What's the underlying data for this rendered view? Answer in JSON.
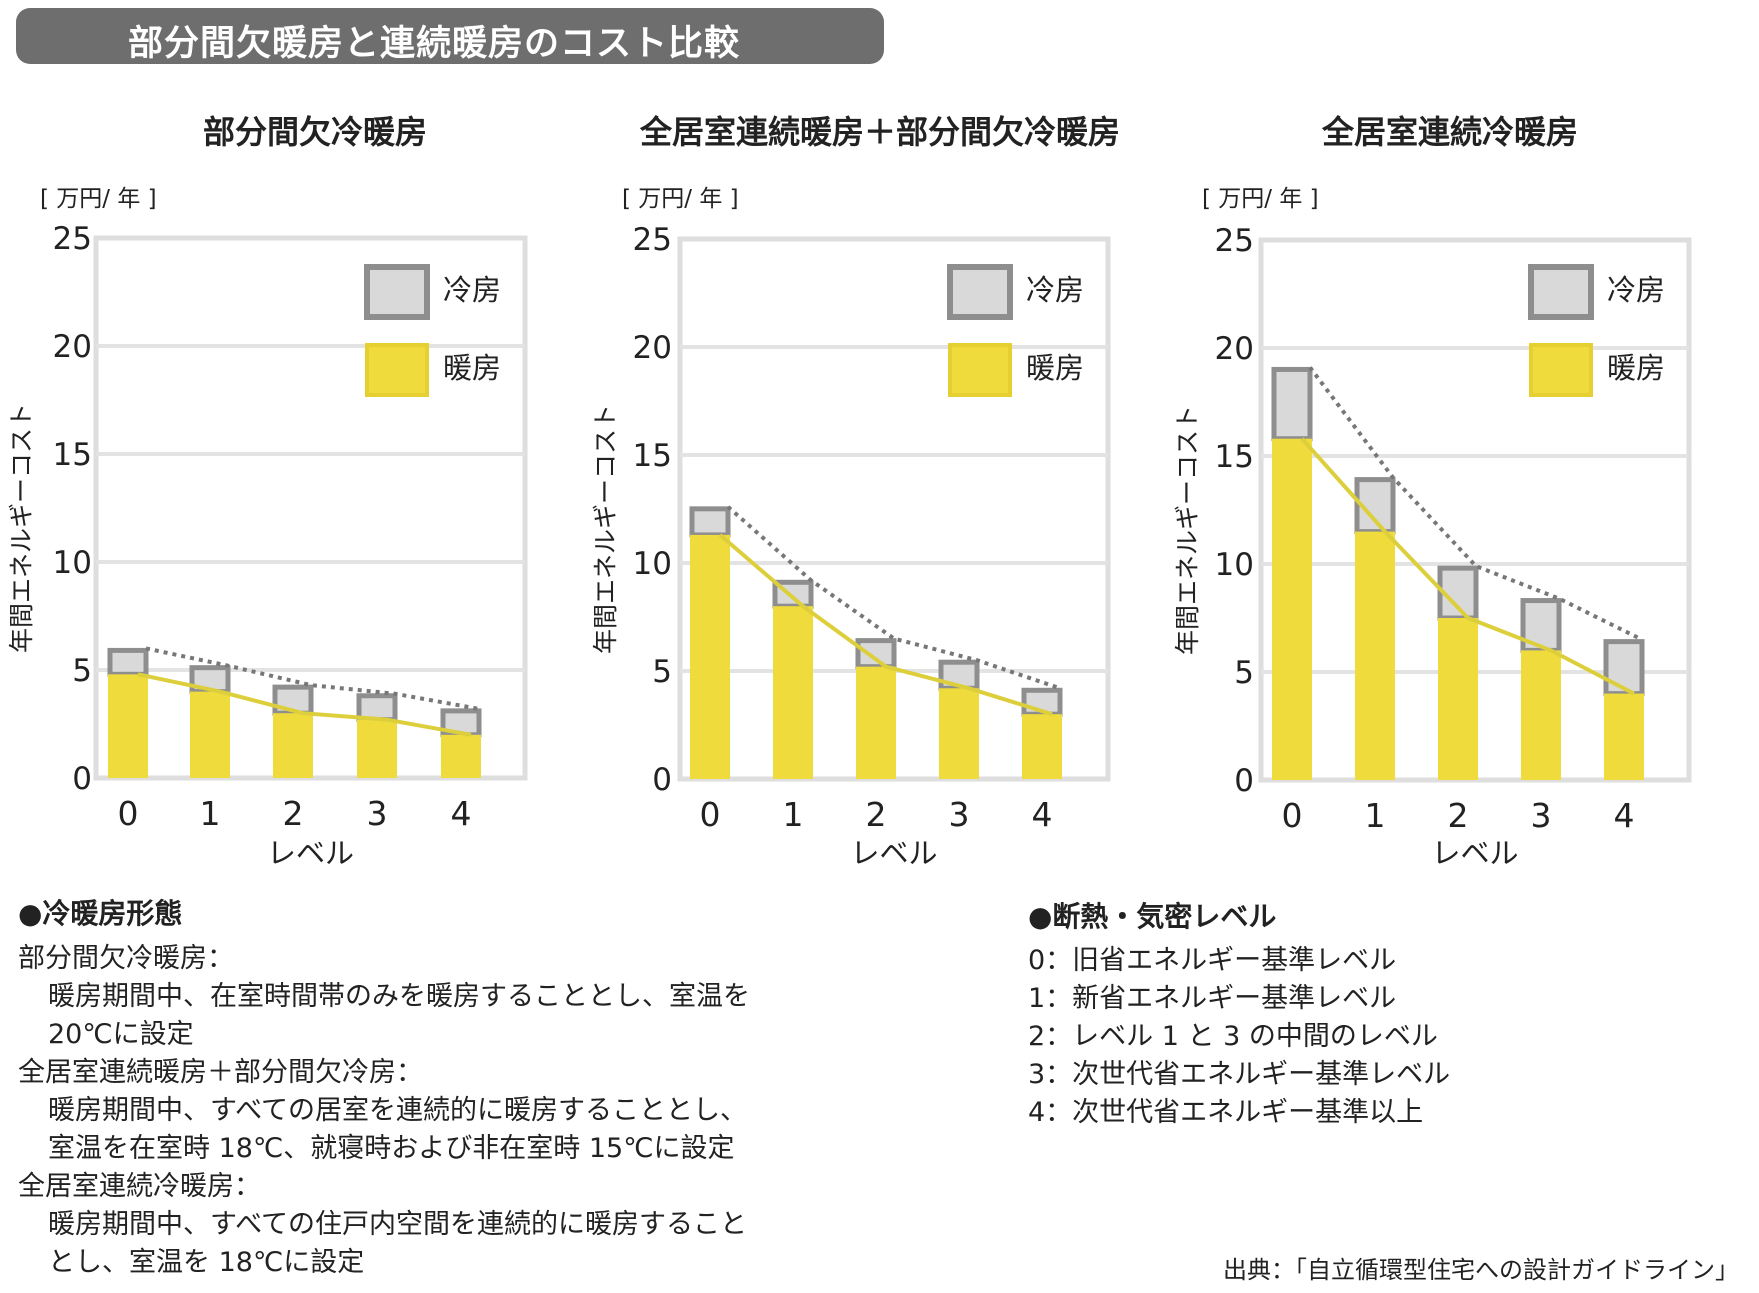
{
  "header": {
    "title": "部分間欠暖房と連続暖房のコスト比較"
  },
  "legend": {
    "cooling": "冷房",
    "heating": "暖房"
  },
  "colors": {
    "heating": "#efdb3c",
    "cooling": "#d9d9d9",
    "cooling_border": "#8e8e8e",
    "line": "#dccf3b",
    "grid": "#e3e3e3",
    "banner": "#6e6e6e"
  },
  "chart_data": [
    {
      "type": "bar",
      "title": "部分間欠冷暖房",
      "unit": "[ 万円/ 年 ]",
      "ylabel": "年間エネルギーコスト",
      "xlabel": "レベル",
      "categories": [
        "0",
        "1",
        "2",
        "3",
        "4"
      ],
      "ylim": [
        0,
        25
      ],
      "yticks": [
        "0",
        "5",
        "10",
        "15",
        "20",
        "25"
      ],
      "stacked": true,
      "series": [
        {
          "name": "暖房",
          "values": [
            4.8,
            4.0,
            3.0,
            2.7,
            2.0
          ]
        },
        {
          "name": "冷房",
          "values": [
            1.2,
            1.2,
            1.3,
            1.2,
            1.2
          ]
        }
      ]
    },
    {
      "type": "bar",
      "title": "全居室連続暖房＋部分間欠冷暖房",
      "unit": "[ 万円/ 年 ]",
      "ylabel": "年間エネルギーコスト",
      "xlabel": "レベル",
      "categories": [
        "0",
        "1",
        "2",
        "3",
        "4"
      ],
      "ylim": [
        0,
        25
      ],
      "yticks": [
        "0",
        "5",
        "10",
        "15",
        "20",
        "25"
      ],
      "stacked": true,
      "series": [
        {
          "name": "暖房",
          "values": [
            11.3,
            8.0,
            5.2,
            4.2,
            3.0
          ]
        },
        {
          "name": "冷房",
          "values": [
            1.3,
            1.2,
            1.3,
            1.3,
            1.2
          ]
        }
      ]
    },
    {
      "type": "bar",
      "title": "全居室連続冷暖房",
      "unit": "[ 万円/ 年 ]",
      "ylabel": "年間エネルギーコスト",
      "xlabel": "レベル",
      "categories": [
        "0",
        "1",
        "2",
        "3",
        "4"
      ],
      "ylim": [
        0,
        25
      ],
      "yticks": [
        "0",
        "5",
        "10",
        "15",
        "20",
        "25"
      ],
      "stacked": true,
      "series": [
        {
          "name": "暖房",
          "values": [
            15.8,
            11.5,
            7.5,
            6.0,
            4.0
          ]
        },
        {
          "name": "冷房",
          "values": [
            3.3,
            2.5,
            2.4,
            2.4,
            2.5
          ]
        }
      ]
    }
  ],
  "notes_left": {
    "heading": "●冷暖房形態",
    "lines": [
      "部分間欠冷暖房：",
      "暖房期間中、在室時間帯のみを暖房することとし、室温を",
      "20℃に設定",
      "全居室連続暖房＋部分間欠冷房：",
      "暖房期間中、すべての居室を連続的に暖房することとし、",
      "室温を在室時 18℃、就寝時および非在室時 15℃に設定",
      "全居室連続冷暖房：",
      "暖房期間中、すべての住戸内空間を連続的に暖房すること",
      "とし、室温を 18℃に設定"
    ]
  },
  "notes_right": {
    "heading": "●断熱・気密レベル",
    "lines": [
      "0：旧省エネルギー基準レベル",
      "1：新省エネルギー基準レベル",
      "2：レベル 1 と 3 の中間のレベル",
      "3：次世代省エネルギー基準レベル",
      "4：次世代省エネルギー基準以上"
    ]
  },
  "source": "出典：「自立循環型住宅への設計ガイドライン」"
}
